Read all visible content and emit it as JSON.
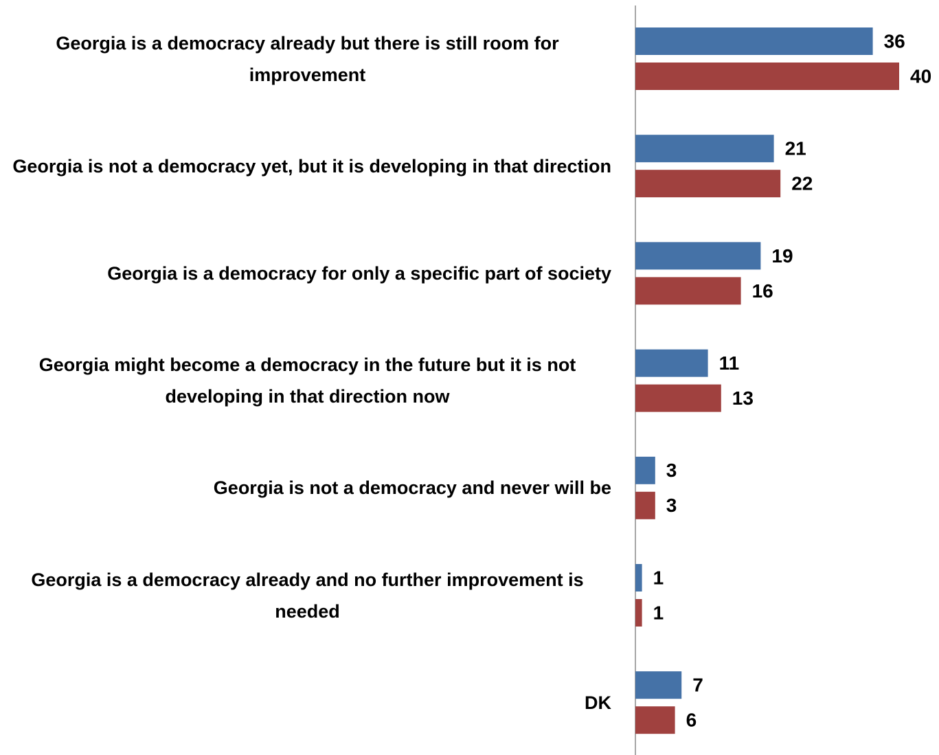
{
  "chart_data": {
    "type": "bar",
    "orientation": "horizontal",
    "categories": [
      "Georgia is a democracy already but there is still room for improvement",
      "Georgia is not a democracy yet, but it is developing in that direction",
      "Georgia is a democracy for only a specific part of society",
      "Georgia might become a democracy in the future but it is not developing in that direction now",
      "Georgia is not a democracy and never will be",
      "Georgia is a democracy already and no further improvement is needed",
      "DK"
    ],
    "series": [
      {
        "color": "#4572a7",
        "values": [
          36,
          21,
          19,
          11,
          3,
          1,
          7
        ]
      },
      {
        "color": "#a0413f",
        "values": [
          40,
          22,
          16,
          13,
          3,
          1,
          6
        ]
      }
    ]
  }
}
